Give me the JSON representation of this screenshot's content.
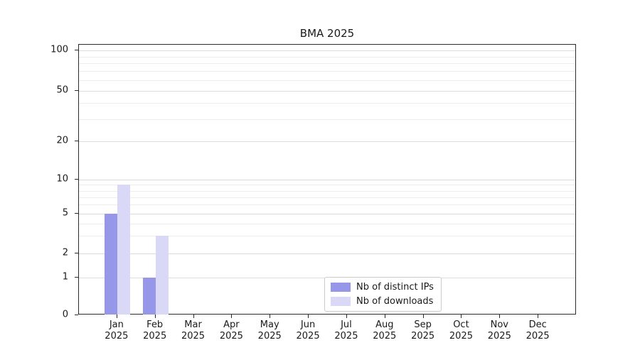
{
  "title": "BMA 2025",
  "chart_data": {
    "type": "bar",
    "months": [
      "Jan",
      "Feb",
      "Mar",
      "Apr",
      "May",
      "Jun",
      "Jul",
      "Aug",
      "Sep",
      "Oct",
      "Nov",
      "Dec"
    ],
    "year_label": "2025",
    "series": [
      {
        "name": "Nb of distinct IPs",
        "color": "#9797ea",
        "values": [
          5,
          1,
          0,
          0,
          0,
          0,
          0,
          0,
          0,
          0,
          0,
          0
        ]
      },
      {
        "name": "Nb of downloads",
        "color": "#d9d9f7",
        "values": [
          9,
          3,
          0,
          0,
          0,
          0,
          0,
          0,
          0,
          0,
          0,
          0
        ]
      }
    ],
    "y_axis": {
      "scale": "symlog-like",
      "ticks": [
        {
          "value": 0,
          "pos": 1.0
        },
        {
          "value": 1,
          "pos": 0.861
        },
        {
          "value": 2,
          "pos": 0.772
        },
        {
          "value": 5,
          "pos": 0.625
        },
        {
          "value": 10,
          "pos": 0.499
        },
        {
          "value": 20,
          "pos": 0.357
        },
        {
          "value": 50,
          "pos": 0.171
        },
        {
          "value": 100,
          "pos": 0.021
        }
      ],
      "minor_gridline_values": [
        3,
        4,
        6,
        7,
        8,
        9,
        30,
        40,
        60,
        70,
        80,
        90
      ]
    },
    "legend": {
      "position": "bottom-center",
      "entries": [
        "Nb of distinct IPs",
        "Nb of downloads"
      ]
    },
    "grid": true,
    "xlabel": "",
    "ylabel": ""
  }
}
